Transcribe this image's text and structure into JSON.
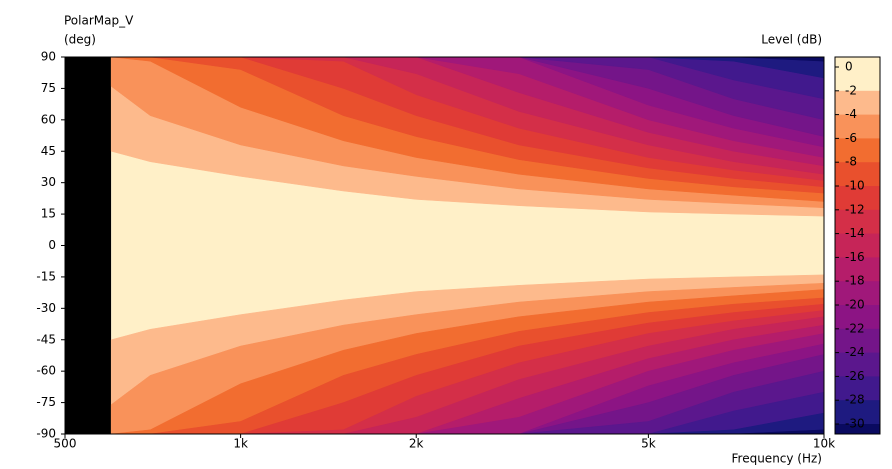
{
  "chart_data": {
    "type": "contour",
    "title": "PolarMap_V",
    "y_label": "(deg)",
    "x_label": "Frequency (Hz)",
    "colorbar_label": "Level (dB)",
    "log_x": true,
    "xlim": [
      500,
      10000
    ],
    "xticks": [
      500,
      {
        "value": 1000,
        "label": "1k"
      },
      {
        "value": 2000,
        "label": "2k"
      },
      {
        "value": 5000,
        "label": "5k"
      },
      {
        "value": 10000,
        "label": "10k"
      }
    ],
    "ylim": [
      -90,
      90
    ],
    "yticks": [
      90,
      75,
      60,
      45,
      30,
      15,
      0,
      -15,
      -30,
      -45,
      -60,
      -75,
      -90
    ],
    "no_data_color": "#000000",
    "levels": [
      0,
      -2,
      -4,
      -6,
      -8,
      -10,
      -12,
      -14,
      -16,
      -18,
      -20,
      -22,
      -24,
      -26,
      -28,
      -30
    ],
    "colors": [
      "#fff0c8",
      "#fff0c8",
      "#fdba8c",
      "#f9925a",
      "#f26d30",
      "#e9502d",
      "#e03b36",
      "#d42f48",
      "#c62558",
      "#b51d6a",
      "#a0187a",
      "#8c1484",
      "#741589",
      "#5b178d",
      "#41198d",
      "#1e1a80",
      "#0a0a60"
    ],
    "x": [
      600,
      700,
      1000,
      1500,
      2000,
      3000,
      5000,
      7000,
      10000
    ],
    "boundaries": [
      [
        45,
        40,
        33,
        26,
        22,
        19,
        16,
        15,
        14
      ],
      [
        76,
        62,
        48,
        38,
        33,
        27,
        22,
        20,
        18
      ],
      [
        90,
        88,
        66,
        50,
        42,
        34,
        27,
        24,
        21
      ],
      [
        90,
        90,
        84,
        62,
        52,
        41,
        32,
        28,
        25
      ],
      [
        90,
        90,
        90,
        75,
        62,
        48,
        37,
        32,
        28
      ],
      [
        90,
        90,
        90,
        88,
        72,
        56,
        42,
        36,
        31
      ],
      [
        90,
        90,
        90,
        90,
        82,
        64,
        48,
        40,
        34
      ],
      [
        90,
        90,
        90,
        90,
        90,
        73,
        54,
        45,
        38
      ],
      [
        90,
        90,
        90,
        90,
        90,
        82,
        60,
        50,
        42
      ],
      [
        90,
        90,
        90,
        90,
        90,
        90,
        67,
        56,
        47
      ],
      [
        90,
        90,
        90,
        90,
        90,
        90,
        75,
        62,
        52
      ],
      [
        90,
        90,
        90,
        90,
        90,
        90,
        84,
        70,
        60
      ],
      [
        90,
        90,
        90,
        90,
        90,
        90,
        90,
        79,
        70
      ],
      [
        90,
        90,
        90,
        90,
        90,
        90,
        90,
        88,
        80
      ],
      [
        90,
        90,
        90,
        90,
        90,
        90,
        90,
        90,
        88
      ]
    ]
  }
}
